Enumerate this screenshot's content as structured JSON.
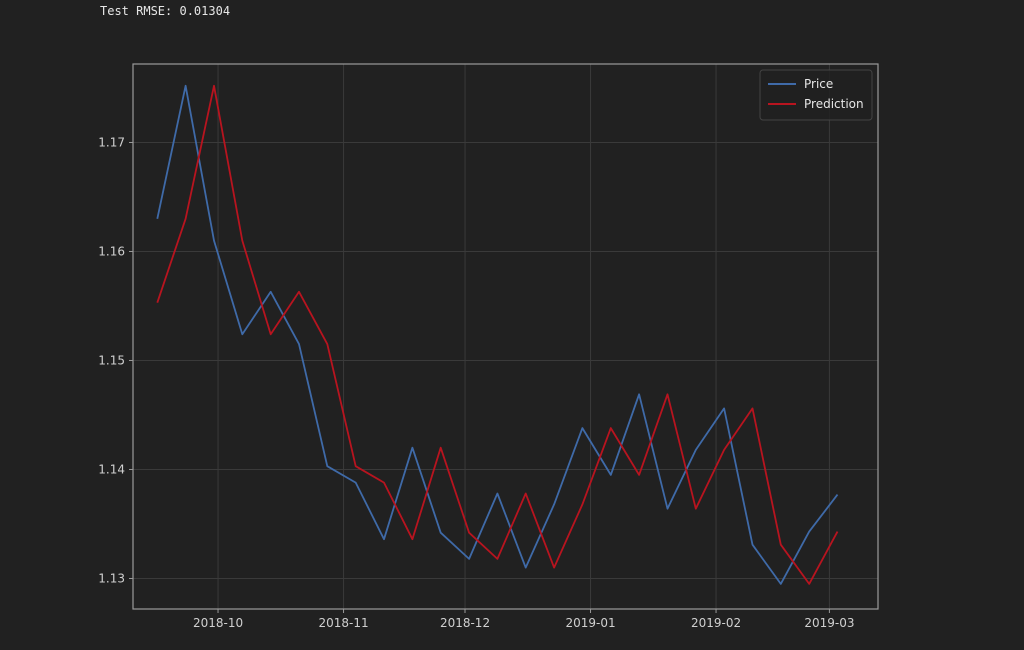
{
  "output": {
    "rmse_text": "Test RMSE: 0.01304"
  },
  "colors": {
    "background": "#212121",
    "axes_frame": "#9a9a9a",
    "grid": "#3a3a3a",
    "price": "#3f6aa8",
    "prediction": "#b8141f"
  },
  "chart_data": {
    "type": "line",
    "title": "",
    "xlabel": "",
    "ylabel": "",
    "x_tick_labels": [
      "2018-10",
      "2018-11",
      "2018-12",
      "2019-01",
      "2019-02",
      "2019-03"
    ],
    "x_tick_dates": [
      "2018-10-01",
      "2018-11-01",
      "2018-12-01",
      "2019-01-01",
      "2019-02-01",
      "2019-03-01"
    ],
    "y_tick_labels": [
      "1.13",
      "1.14",
      "1.15",
      "1.16",
      "1.17"
    ],
    "y_ticks": [
      1.13,
      1.14,
      1.15,
      1.16,
      1.17
    ],
    "xlim": [
      "2018-09-10",
      "2019-03-13"
    ],
    "ylim": [
      1.1272,
      1.1772
    ],
    "grid": true,
    "legend_position": "top-right",
    "x": [
      "2018-09-16",
      "2018-09-23",
      "2018-09-30",
      "2018-10-07",
      "2018-10-14",
      "2018-10-21",
      "2018-10-28",
      "2018-11-04",
      "2018-11-11",
      "2018-11-18",
      "2018-11-25",
      "2018-12-02",
      "2018-12-09",
      "2018-12-16",
      "2018-12-23",
      "2018-12-30",
      "2019-01-06",
      "2019-01-13",
      "2019-01-20",
      "2019-01-27",
      "2019-02-03",
      "2019-02-10",
      "2019-02-17",
      "2019-02-24",
      "2019-03-03"
    ],
    "series": [
      {
        "name": "Price",
        "values": [
          1.163,
          1.1752,
          1.161,
          1.1524,
          1.1563,
          1.1515,
          1.1403,
          1.1388,
          1.1336,
          1.142,
          1.1342,
          1.1318,
          1.1378,
          1.131,
          1.1368,
          1.1438,
          1.1395,
          1.1469,
          1.1364,
          1.1418,
          1.1456,
          1.1331,
          1.1295,
          1.1343,
          1.1377
        ]
      },
      {
        "name": "Prediction",
        "values": [
          1.1553,
          1.163,
          1.1752,
          1.161,
          1.1524,
          1.1563,
          1.1515,
          1.1403,
          1.1388,
          1.1336,
          1.142,
          1.1342,
          1.1318,
          1.1378,
          1.131,
          1.1368,
          1.1438,
          1.1395,
          1.1469,
          1.1364,
          1.1418,
          1.1456,
          1.1331,
          1.1295,
          1.1343
        ]
      }
    ]
  }
}
